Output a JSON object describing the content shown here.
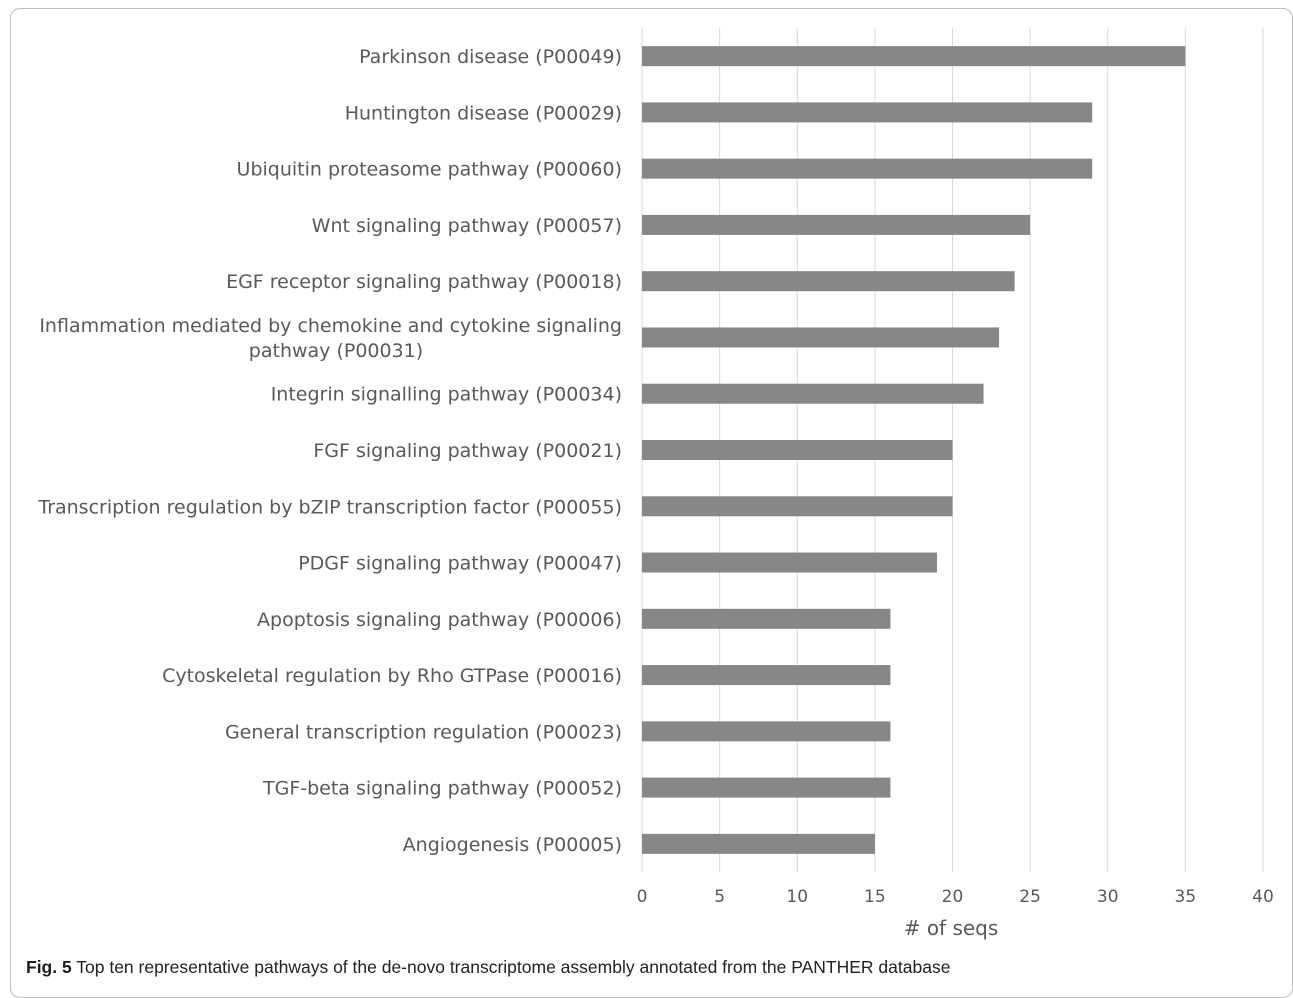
{
  "chart_data": {
    "type": "bar",
    "orientation": "horizontal",
    "categories": [
      "Parkinson disease (P00049)",
      "Huntington disease (P00029)",
      "Ubiquitin proteasome pathway (P00060)",
      "Wnt signaling pathway (P00057)",
      "EGF receptor signaling pathway (P00018)",
      "Inflammation mediated by chemokine and cytokine signaling pathway (P00031)",
      "Integrin signalling pathway (P00034)",
      "FGF signaling pathway (P00021)",
      "Transcription regulation by bZIP transcription factor (P00055)",
      "PDGF signaling pathway (P00047)",
      "Apoptosis signaling pathway (P00006)",
      "Cytoskeletal regulation by Rho GTPase (P00016)",
      "General transcription regulation (P00023)",
      "TGF-beta signaling pathway (P00052)",
      "Angiogenesis (P00005)"
    ],
    "label_lines": [
      [
        "Parkinson disease (P00049)"
      ],
      [
        "Huntington disease (P00029)"
      ],
      [
        "Ubiquitin proteasome pathway (P00060)"
      ],
      [
        "Wnt signaling pathway (P00057)"
      ],
      [
        "EGF receptor signaling pathway (P00018)"
      ],
      [
        "Inflammation mediated by chemokine and cytokine signaling",
        "pathway (P00031)"
      ],
      [
        "Integrin signalling pathway (P00034)"
      ],
      [
        "FGF signaling pathway (P00021)"
      ],
      [
        "Transcription regulation by bZIP transcription factor (P00055)"
      ],
      [
        "PDGF signaling pathway (P00047)"
      ],
      [
        "Apoptosis signaling pathway (P00006)"
      ],
      [
        "Cytoskeletal regulation by Rho GTPase (P00016)"
      ],
      [
        "General transcription regulation (P00023)"
      ],
      [
        "TGF-beta signaling pathway (P00052)"
      ],
      [
        "Angiogenesis (P00005)"
      ]
    ],
    "values": [
      35,
      29,
      29,
      25,
      24,
      23,
      22,
      20,
      20,
      19,
      16,
      16,
      16,
      16,
      15
    ],
    "xlabel": "# of seqs",
    "ylabel": "",
    "xlim": [
      0,
      40
    ],
    "xticks": [
      0,
      5,
      10,
      15,
      20,
      25,
      30,
      35,
      40
    ],
    "grid": "vertical",
    "legend": "none",
    "bar_color": "#878787",
    "grid_color": "#d9d9d9"
  },
  "caption": {
    "label": "Fig. 5",
    "text": " Top ten representative pathways of the de-novo transcriptome assembly annotated from the PANTHER database"
  }
}
